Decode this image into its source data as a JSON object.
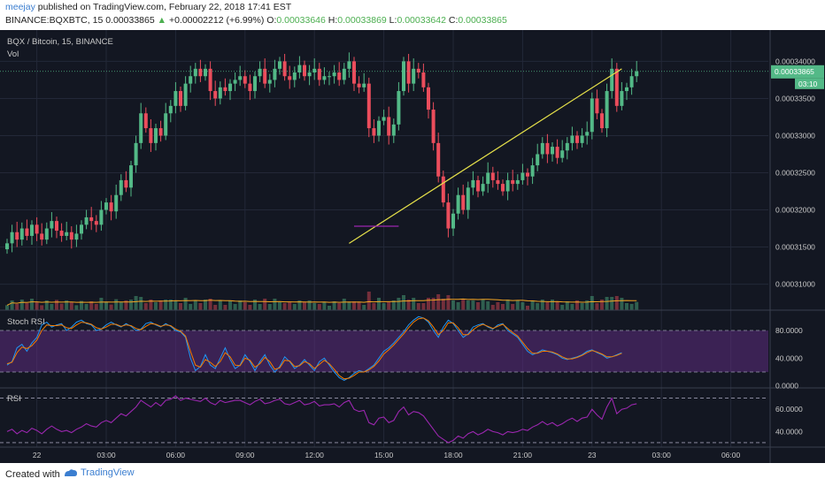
{
  "header": {
    "user": "meejay",
    "published": " published on TradingView.com, February 22, 2018 17:41 EST",
    "symbol": "BINANCE:BQXBTC, 15 ",
    "last": "0.00033865",
    "change_arrow": "▲",
    "change": "+0.00002212 (+6.99%)",
    "o_label": " O:",
    "o": "0.00033646",
    "h_label": " H:",
    "h": "0.00033869",
    "l_label": " L:",
    "l": "0.00033642",
    "c_label": " C:",
    "c": "0.00033865"
  },
  "footer": {
    "made_with": "Created with",
    "brand": "TradingView",
    "brand_icon": "tradingview-logo-icon"
  },
  "colors": {
    "background": "#131722",
    "up": "#53b987",
    "down": "#eb4d5c",
    "trendline": "#e6e14a",
    "support": "#9c27b0",
    "stoch_band": "#5c2b7e",
    "stoch_k": "#2196f3",
    "stoch_d": "#f57c00",
    "rsi_line": "#9c27b0",
    "vol_ma": "#f5a623",
    "grid": "#232838",
    "last_price_bg": "#53b987"
  },
  "chart_data": [
    {
      "panel": "price",
      "type": "candlestick",
      "title": "BQX / Bitcoin, 15, BINANCE",
      "indicator_label": "Vol",
      "x_tick_labels": [
        "22",
        "03:00",
        "06:00",
        "09:00",
        "12:00",
        "15:00",
        "18:00",
        "21:00",
        "23",
        "03:00",
        "06:00"
      ],
      "y_tick_labels": [
        "0.00034000",
        "0.00033500",
        "0.00033000",
        "0.00032500",
        "0.00032000",
        "0.00031500",
        "0.00031000"
      ],
      "y_ticks": [
        0.00034,
        0.000335,
        0.00033,
        0.000325,
        0.00032,
        0.000315,
        0.00031
      ],
      "ylim": [
        0.0003065,
        0.0003435
      ],
      "last_price_label": "0.00033865",
      "countdown_label": "03:10",
      "close": [
        0.0003155,
        0.000317,
        0.000316,
        0.0003175,
        0.0003165,
        0.000318,
        0.0003168,
        0.000316,
        0.0003175,
        0.0003185,
        0.0003172,
        0.0003165,
        0.000317,
        0.000316,
        0.0003168,
        0.000318,
        0.000319,
        0.0003185,
        0.000318,
        0.00032,
        0.000321,
        0.0003198,
        0.000322,
        0.000324,
        0.000323,
        0.000326,
        0.000329,
        0.000333,
        0.000331,
        0.000329,
        0.000331,
        0.00033,
        0.000333,
        0.000334,
        0.000336,
        0.000334,
        0.000337,
        0.000338,
        0.000339,
        0.000338,
        0.000339,
        0.000336,
        0.000335,
        0.0003365,
        0.000336,
        0.000337,
        0.0003375,
        0.000338,
        0.000337,
        0.000336,
        0.000338,
        0.000339,
        0.000337,
        0.0003375,
        0.000339,
        0.00034,
        0.000338,
        0.0003375,
        0.0003385,
        0.0003395,
        0.000338,
        0.0003385,
        0.000339,
        0.0003375,
        0.000338,
        0.000338,
        0.0003385,
        0.0003375,
        0.000339,
        0.00034,
        0.000337,
        0.0003365,
        0.000337,
        0.000331,
        0.00033,
        0.000332,
        0.0003325,
        0.00033,
        0.0003315,
        0.000336,
        0.00034,
        0.000337,
        0.000339,
        0.0003385,
        0.0003365,
        0.0003335,
        0.000329,
        0.0003245,
        0.000321,
        0.0003175,
        0.0003195,
        0.000322,
        0.00032,
        0.000323,
        0.000324,
        0.0003225,
        0.0003235,
        0.000325,
        0.000324,
        0.0003235,
        0.0003225,
        0.000324,
        0.0003235,
        0.000324,
        0.000325,
        0.0003245,
        0.000326,
        0.0003275,
        0.000329,
        0.0003275,
        0.0003285,
        0.000327,
        0.000328,
        0.000329,
        0.00033,
        0.000329,
        0.00033,
        0.0003305,
        0.000335,
        0.000333,
        0.000331,
        0.000336,
        0.000339,
        0.000334,
        0.000336,
        0.0003365,
        0.000338,
        0.00033865
      ],
      "lines": [
        {
          "name": "ascending-trendline",
          "x_index": [
            69,
            124
          ],
          "y": [
            0.0003155,
            0.000339
          ]
        },
        {
          "name": "support-line",
          "x_index": [
            70,
            79
          ],
          "y": [
            0.0003178,
            0.0003178
          ]
        }
      ],
      "volume": {
        "type": "bar",
        "ylim": [
          0,
          50
        ],
        "ma_period": 20
      }
    },
    {
      "panel": "stoch_rsi",
      "type": "line",
      "title": "Stoch RSI",
      "y_tick_labels": [
        "80.0000",
        "40.0000",
        "0.0000"
      ],
      "band": [
        20,
        80
      ],
      "ylim": [
        -3,
        103
      ],
      "series": [
        {
          "values": [
            30,
            35,
            55,
            60,
            50,
            62,
            70,
            88,
            92,
            85,
            88,
            90,
            80,
            85,
            92,
            95,
            90,
            88,
            80,
            82,
            88,
            92,
            88,
            85,
            90,
            86,
            80,
            82,
            90,
            92,
            88,
            85,
            90,
            86,
            80,
            78,
            70,
            40,
            22,
            28,
            45,
            30,
            25,
            40,
            55,
            38,
            25,
            30,
            45,
            35,
            22,
            35,
            45,
            30,
            20,
            28,
            42,
            35,
            25,
            30,
            38,
            30,
            22,
            35,
            40,
            30,
            20,
            12,
            8,
            12,
            18,
            22,
            20,
            25,
            30,
            40,
            50,
            55,
            62,
            70,
            78,
            88,
            95,
            100,
            98,
            92,
            80,
            70,
            85,
            95,
            90,
            80,
            70,
            75,
            85,
            88,
            90,
            85,
            82,
            88,
            90,
            80,
            75,
            70,
            60,
            50,
            45,
            48,
            52,
            50,
            48,
            45,
            40,
            38,
            40,
            42,
            45,
            50,
            52,
            48,
            45,
            40,
            42,
            45,
            48
          ]
        },
        {
          "values": [
            32,
            34,
            48,
            56,
            54,
            58,
            66,
            80,
            88,
            87,
            87,
            88,
            84,
            83,
            88,
            92,
            91,
            89,
            84,
            82,
            85,
            89,
            89,
            86,
            88,
            87,
            83,
            81,
            86,
            90,
            89,
            86,
            88,
            87,
            82,
            79,
            72,
            50,
            30,
            27,
            38,
            34,
            28,
            35,
            48,
            42,
            30,
            29,
            40,
            37,
            27,
            32,
            41,
            35,
            24,
            26,
            37,
            36,
            28,
            29,
            35,
            32,
            25,
            31,
            37,
            32,
            24,
            15,
            10,
            11,
            15,
            20,
            20,
            23,
            28,
            36,
            46,
            52,
            59,
            67,
            75,
            84,
            92,
            97,
            98,
            94,
            85,
            74,
            80,
            91,
            91,
            84,
            74,
            74,
            81,
            86,
            89,
            86,
            83,
            86,
            89,
            83,
            77,
            72,
            63,
            54,
            47,
            47,
            50,
            50,
            49,
            46,
            42,
            39,
            39,
            41,
            44,
            48,
            51,
            49,
            46,
            42,
            42,
            44,
            47
          ]
        }
      ]
    },
    {
      "panel": "rsi",
      "type": "line",
      "title": "RSI",
      "y_tick_labels": [
        "60.0000",
        "40.0000"
      ],
      "band": [
        30,
        70
      ],
      "ylim": [
        26,
        76
      ],
      "series": [
        {
          "values": [
            40,
            42,
            38,
            41,
            39,
            43,
            41,
            38,
            42,
            45,
            42,
            40,
            41,
            39,
            42,
            44,
            47,
            45,
            44,
            48,
            50,
            48,
            52,
            56,
            54,
            58,
            62,
            68,
            65,
            62,
            66,
            63,
            68,
            69,
            72,
            68,
            70,
            69,
            68,
            67,
            70,
            66,
            64,
            68,
            66,
            67,
            68,
            68,
            66,
            64,
            67,
            69,
            65,
            66,
            68,
            69,
            65,
            64,
            66,
            68,
            64,
            65,
            67,
            63,
            64,
            64,
            65,
            62,
            66,
            68,
            60,
            58,
            59,
            48,
            46,
            52,
            53,
            48,
            50,
            58,
            62,
            55,
            58,
            57,
            54,
            48,
            42,
            36,
            33,
            30,
            32,
            36,
            34,
            38,
            40,
            37,
            39,
            42,
            40,
            39,
            37,
            40,
            39,
            40,
            42,
            41,
            44,
            46,
            49,
            46,
            48,
            45,
            47,
            50,
            52,
            49,
            52,
            53,
            60,
            55,
            51,
            62,
            70,
            56,
            60,
            61,
            64,
            65
          ]
        }
      ]
    }
  ]
}
